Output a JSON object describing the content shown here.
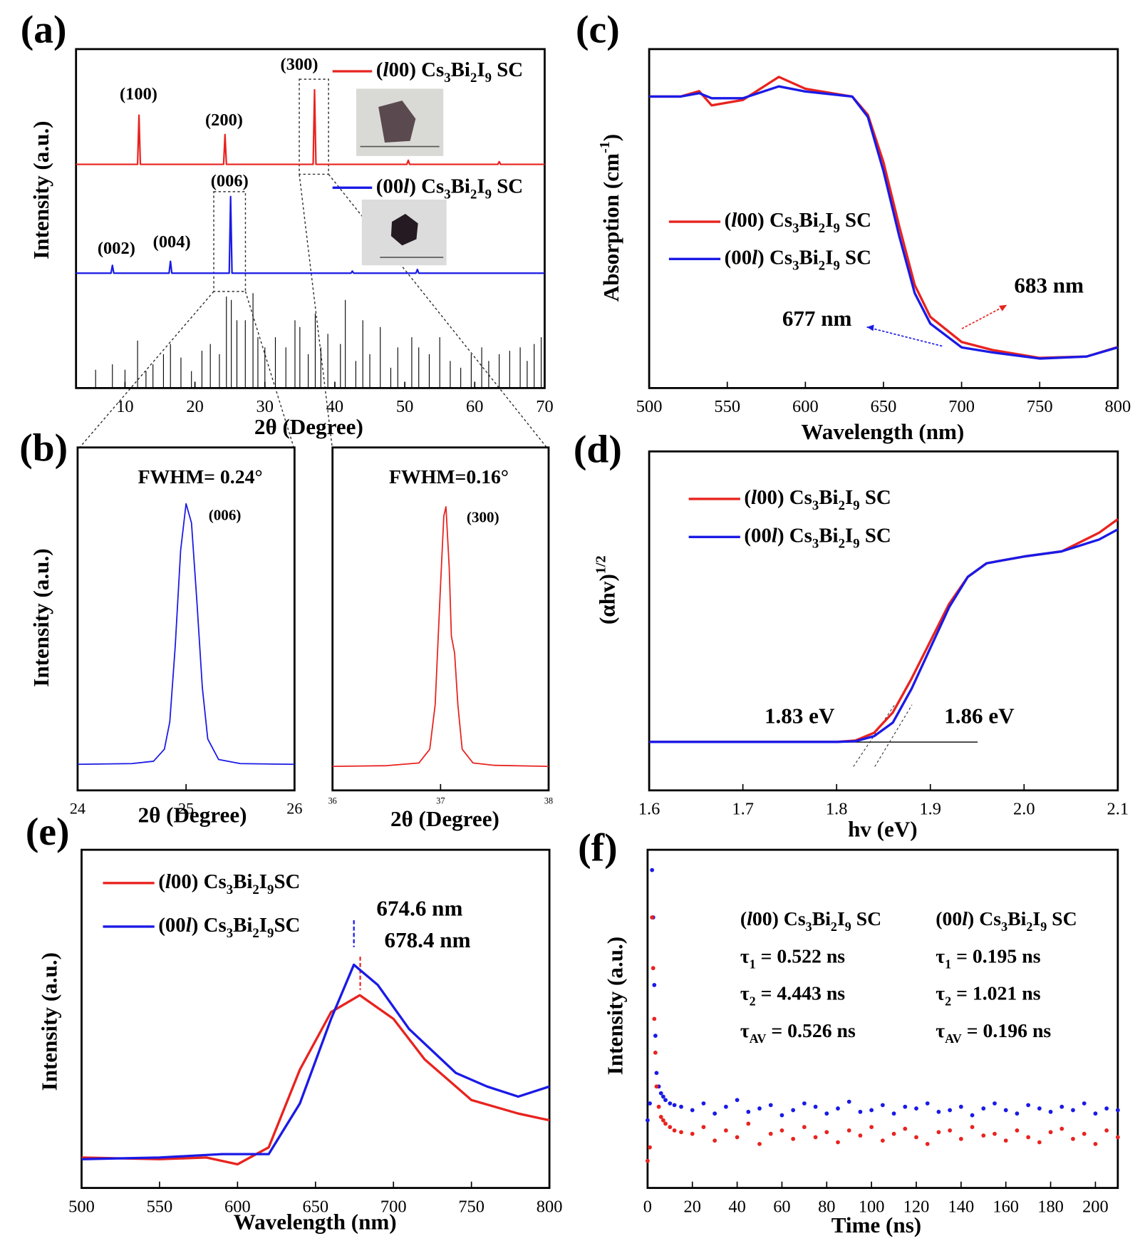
{
  "chart_data": [
    {
      "type": "line",
      "panel_label": "(a)",
      "xlabel": "2θ (Degree)",
      "ylabel": "Intensity (a.u.)",
      "xlim": [
        3,
        70
      ],
      "ylim": [
        0,
        1
      ],
      "xticks": [
        10,
        20,
        30,
        40,
        50,
        60,
        70
      ],
      "series": [
        {
          "name": "(l00) Cs3Bi2I9 SC",
          "color": "#e8231f",
          "x": [
            3,
            11.8,
            12,
            12.2,
            24.1,
            24.3,
            24.5,
            36.9,
            37.1,
            37.3,
            50.3,
            50.5,
            50.7,
            63.3,
            63.5,
            63.7,
            70
          ],
          "values": [
            0.66,
            0.66,
            0.805,
            0.66,
            0.66,
            0.748,
            0.66,
            0.66,
            0.88,
            0.66,
            0.66,
            0.672,
            0.66,
            0.66,
            0.668,
            0.66,
            0.66
          ]
        },
        {
          "name": "(00l) Cs3Bi2I9 SC",
          "color": "#1a1ae6",
          "x": [
            3,
            8,
            8.2,
            8.4,
            16.3,
            16.5,
            16.7,
            24.9,
            25.1,
            25.3,
            42.3,
            42.5,
            42.7,
            51.6,
            51.8,
            52,
            70
          ],
          "values": [
            0.339,
            0.339,
            0.362,
            0.339,
            0.339,
            0.374,
            0.339,
            0.339,
            0.565,
            0.339,
            0.339,
            0.345,
            0.339,
            0.339,
            0.35,
            0.339,
            0.339
          ]
        }
      ],
      "reference": {
        "color": "#000000",
        "x": [
          5.8,
          8.2,
          10,
          11.8,
          13,
          14,
          15.5,
          16.5,
          18,
          19.5,
          21,
          22.2,
          23.5,
          24.5,
          25.2,
          26,
          27.2,
          28.3,
          29,
          30,
          31.5,
          33,
          34.3,
          35,
          36.2,
          37.2,
          38,
          39,
          40.8,
          41.5,
          43,
          44,
          45,
          46.5,
          48,
          49,
          51,
          52,
          53.5,
          55,
          56.5,
          58,
          59.5,
          61,
          62,
          63.5,
          65,
          66.5,
          67.5,
          68.5,
          69.5
        ],
        "values": [
          0.054,
          0.07,
          0.054,
          0.14,
          0.05,
          0.07,
          0.1,
          0.13,
          0.09,
          0.05,
          0.11,
          0.13,
          0.1,
          0.27,
          0.26,
          0.2,
          0.2,
          0.28,
          0.15,
          0.12,
          0.15,
          0.12,
          0.2,
          0.18,
          0.1,
          0.22,
          0.12,
          0.16,
          0.13,
          0.26,
          0.08,
          0.2,
          0.1,
          0.18,
          0.06,
          0.12,
          0.15,
          0.12,
          0.1,
          0.15,
          0.08,
          0.06,
          0.1,
          0.12,
          0.08,
          0.1,
          0.11,
          0.12,
          0.08,
          0.13,
          0.15
        ]
      },
      "annotations": [
        {
          "text": "(100)",
          "color": "#000000"
        },
        {
          "text": "(200)",
          "color": "#000000"
        },
        {
          "text": "(300)",
          "color": "#000000"
        },
        {
          "text": "(006)",
          "color": "#000000"
        },
        {
          "text": "(002)",
          "color": "#000000"
        },
        {
          "text": "(004)",
          "color": "#000000"
        }
      ]
    },
    {
      "type": "line",
      "panel_label": "(b)",
      "xlabel": "2θ (Degree)",
      "ylabel": "Intensity (a.u.)",
      "xlim": [
        24,
        26
      ],
      "ylim": [
        0,
        1
      ],
      "xticks": [
        24,
        25,
        26
      ],
      "series": [
        {
          "color": "#1a1ae6",
          "x": [
            24,
            24.5,
            24.7,
            24.8,
            24.85,
            24.9,
            24.95,
            25,
            25.05,
            25.1,
            25.15,
            25.2,
            25.3,
            25.5,
            26
          ],
          "values": [
            0.076,
            0.078,
            0.085,
            0.12,
            0.2,
            0.42,
            0.7,
            0.836,
            0.78,
            0.55,
            0.3,
            0.15,
            0.09,
            0.078,
            0.076
          ]
        }
      ],
      "annotations": [
        {
          "text": "FWHM= 0.24°",
          "color": "#1a1ae6"
        },
        {
          "text": "(006)",
          "color": "#000000"
        }
      ]
    },
    {
      "type": "line",
      "xlabel": "2θ (Degree)",
      "xlim": [
        36,
        38
      ],
      "ylim": [
        0,
        1
      ],
      "xticks": [
        36,
        37,
        38
      ],
      "series": [
        {
          "color": "#e8231f",
          "x": [
            36,
            36.5,
            36.8,
            36.9,
            36.95,
            37,
            37.03,
            37.05,
            37.08,
            37.1,
            37.13,
            37.16,
            37.2,
            37.3,
            37.5,
            38
          ],
          "values": [
            0.07,
            0.072,
            0.08,
            0.12,
            0.25,
            0.6,
            0.8,
            0.827,
            0.65,
            0.45,
            0.4,
            0.25,
            0.12,
            0.08,
            0.073,
            0.07
          ]
        }
      ],
      "annotations": [
        {
          "text": "FWHM=0.16°",
          "color": "#e8231f"
        },
        {
          "text": "(300)",
          "color": "#000000"
        }
      ]
    },
    {
      "type": "line",
      "panel_label": "(c)",
      "xlabel": "Wavelength (nm)",
      "ylabel": "Absorption (cm-1)",
      "xlim": [
        500,
        800
      ],
      "ylim": [
        0,
        1
      ],
      "xticks": [
        500,
        550,
        600,
        650,
        700,
        750,
        800
      ],
      "series": [
        {
          "name": "(l00) Cs3Bi2I9 SC",
          "color": "#e8231f",
          "x": [
            500,
            520,
            532,
            540,
            560,
            583,
            600,
            630,
            640,
            650,
            660,
            670,
            680,
            700,
            720,
            750,
            780,
            800
          ],
          "values": [
            0.86,
            0.86,
            0.876,
            0.834,
            0.85,
            0.918,
            0.883,
            0.86,
            0.806,
            0.666,
            0.479,
            0.304,
            0.21,
            0.136,
            0.112,
            0.089,
            0.093,
            0.121
          ]
        },
        {
          "name": "(00l) Cs3Bi2I9 SC",
          "color": "#1a1ae6",
          "x": [
            500,
            520,
            532,
            540,
            560,
            583,
            600,
            630,
            640,
            650,
            660,
            670,
            680,
            700,
            720,
            750,
            780,
            800
          ],
          "values": [
            0.86,
            0.86,
            0.87,
            0.855,
            0.855,
            0.89,
            0.875,
            0.86,
            0.8,
            0.64,
            0.45,
            0.28,
            0.19,
            0.12,
            0.105,
            0.087,
            0.093,
            0.12
          ]
        }
      ],
      "annotations": [
        {
          "text": "683 nm",
          "color": "#e8231f"
        },
        {
          "text": "677 nm",
          "color": "#1a1ae6"
        }
      ]
    },
    {
      "type": "line",
      "panel_label": "(d)",
      "xlabel": "hv (eV)",
      "ylabel": "(αhv)1/2",
      "xlim": [
        1.6,
        2.1
      ],
      "ylim": [
        0,
        1
      ],
      "xticks": [
        1.6,
        1.7,
        1.8,
        1.9,
        {
          "value": 2,
          "label": "2.0"
        },
        2.1
      ],
      "series": [
        {
          "name": "(l00) Cs3Bi2I9 SC",
          "color": "#e8231f",
          "x": [
            1.6,
            1.8,
            1.82,
            1.84,
            1.86,
            1.88,
            1.9,
            1.92,
            1.94,
            1.96,
            2.0,
            2.04,
            2.08,
            2.1
          ],
          "values": [
            0.143,
            0.143,
            0.147,
            0.17,
            0.23,
            0.33,
            0.44,
            0.55,
            0.63,
            0.67,
            0.69,
            0.705,
            0.76,
            0.8
          ]
        },
        {
          "name": "(00l) Cs3Bi2I9 SC",
          "color": "#1a1ae6",
          "x": [
            1.6,
            1.8,
            1.82,
            1.84,
            1.86,
            1.88,
            1.9,
            1.92,
            1.94,
            1.96,
            2.0,
            2.04,
            2.08,
            2.1
          ],
          "values": [
            0.143,
            0.143,
            0.145,
            0.16,
            0.2,
            0.3,
            0.42,
            0.54,
            0.63,
            0.67,
            0.69,
            0.705,
            0.74,
            0.77
          ]
        }
      ],
      "annotations": [
        {
          "text": "1.83 eV",
          "color": "#e8231f"
        },
        {
          "text": "1.86 eV",
          "color": "#1a1ae6"
        }
      ]
    },
    {
      "type": "line",
      "panel_label": "(e)",
      "xlabel": "Wavelength (nm)",
      "ylabel": "Intensity (a.u.)",
      "xlim": [
        500,
        800
      ],
      "ylim": [
        0,
        1
      ],
      "xticks": [
        500,
        550,
        600,
        650,
        700,
        750,
        800
      ],
      "series": [
        {
          "name": "(l00) Cs3Bi2I9SC",
          "color": "#e8231f",
          "x": [
            500,
            550,
            580,
            600,
            620,
            640,
            660,
            678.4,
            700,
            720,
            750,
            780,
            800
          ],
          "values": [
            0.09,
            0.085,
            0.09,
            0.07,
            0.12,
            0.35,
            0.52,
            0.57,
            0.5,
            0.38,
            0.26,
            0.22,
            0.2
          ]
        },
        {
          "name": "(00l) Cs3Bi2I9SC",
          "color": "#1a1ae6",
          "x": [
            500,
            550,
            590,
            620,
            640,
            660,
            674.6,
            690,
            710,
            740,
            760,
            780,
            800
          ],
          "values": [
            0.085,
            0.09,
            0.1,
            0.1,
            0.25,
            0.5,
            0.66,
            0.6,
            0.47,
            0.34,
            0.3,
            0.27,
            0.3
          ]
        }
      ],
      "annotations": [
        {
          "text": "674.6 nm",
          "color": "#1a1ae6"
        },
        {
          "text": "678.4 nm",
          "color": "#e8231f"
        }
      ]
    },
    {
      "type": "scatter",
      "panel_label": "(f)",
      "xlabel": "Time (ns)",
      "ylabel": "Intensity (a.u.)",
      "xlim": [
        0,
        210
      ],
      "ylim": [
        0,
        1
      ],
      "xticks": [
        0,
        20,
        40,
        60,
        80,
        100,
        120,
        140,
        160,
        180,
        200
      ],
      "x": [
        0,
        1,
        2,
        2.5,
        3,
        3.5,
        4,
        5,
        6,
        7,
        8,
        10,
        12,
        15,
        20,
        25,
        30,
        35,
        40,
        45,
        50,
        55,
        60,
        65,
        70,
        75,
        80,
        85,
        90,
        95,
        100,
        105,
        110,
        115,
        120,
        125,
        130,
        135,
        140,
        145,
        150,
        155,
        160,
        165,
        170,
        175,
        180,
        185,
        190,
        195,
        200,
        205,
        210
      ],
      "series": [
        {
          "color": "#1a1ae6",
          "values": [
            0.2,
            0.25,
            0.94,
            0.8,
            0.6,
            0.45,
            0.34,
            0.3,
            0.28,
            0.27,
            0.26,
            0.25,
            0.245,
            0.24,
            0.23,
            0.25,
            0.22,
            0.24,
            0.26,
            0.225,
            0.235,
            0.245,
            0.215,
            0.23,
            0.25,
            0.24,
            0.22,
            0.235,
            0.255,
            0.225,
            0.23,
            0.245,
            0.22,
            0.24,
            0.235,
            0.25,
            0.225,
            0.23,
            0.24,
            0.215,
            0.235,
            0.25,
            0.23,
            0.22,
            0.245,
            0.235,
            0.225,
            0.24,
            0.23,
            0.25,
            0.22,
            0.235,
            0.23
          ]
        },
        {
          "color": "#e8231f",
          "values": [
            0.08,
            0.12,
            0.8,
            0.65,
            0.5,
            0.4,
            0.3,
            0.24,
            0.21,
            0.2,
            0.19,
            0.18,
            0.17,
            0.165,
            0.16,
            0.18,
            0.14,
            0.17,
            0.15,
            0.19,
            0.13,
            0.16,
            0.17,
            0.145,
            0.18,
            0.15,
            0.165,
            0.135,
            0.17,
            0.155,
            0.18,
            0.14,
            0.16,
            0.175,
            0.15,
            0.13,
            0.165,
            0.17,
            0.145,
            0.18,
            0.155,
            0.16,
            0.14,
            0.17,
            0.15,
            0.135,
            0.165,
            0.175,
            0.145,
            0.16,
            0.13,
            0.17,
            0.15
          ]
        }
      ],
      "annotations": [
        {
          "text": "(l00) Cs3Bi2I9  SC",
          "color": "#e8231f"
        },
        {
          "text": "τ1 = 0.522 ns",
          "color": "#e8231f"
        },
        {
          "text": "τ2 = 4.443 ns",
          "color": "#e8231f"
        },
        {
          "text": "τAV = 0.526 ns",
          "color": "#e8231f"
        },
        {
          "text": "(00l) Cs3Bi2I9 SC",
          "color": "#1a1ae6"
        },
        {
          "text": "τ1 = 0.195 ns",
          "color": "#1a1ae6"
        },
        {
          "text": "τ2 = 1.021 ns",
          "color": "#1a1ae6"
        },
        {
          "text": "τAV = 0.196 ns",
          "color": "#1a1ae6"
        }
      ]
    }
  ]
}
